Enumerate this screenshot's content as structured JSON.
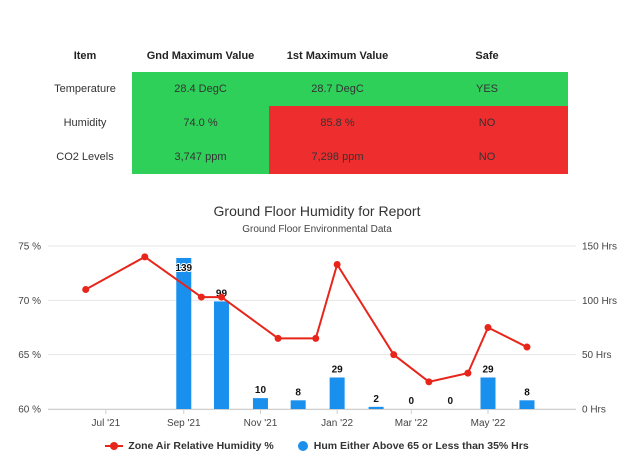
{
  "table": {
    "headers": [
      "Item",
      "Gnd Maximum Value",
      "1st Maximum Value",
      "Safe"
    ],
    "rows": [
      {
        "item": "Temperature",
        "gnd": "28.4 DegC",
        "first": "28.7 DegC",
        "safe": "YES",
        "gnd_color": "#2fd05a",
        "first_color": "#2fd05a",
        "safe_color": "#2fd05a"
      },
      {
        "item": "Humidity",
        "gnd": "74.0 %",
        "first": "85.8 %",
        "safe": "NO",
        "gnd_color": "#2fd05a",
        "first_color": "#ee2e2e",
        "safe_color": "#ee2e2e"
      },
      {
        "item": "CO2 Levels",
        "gnd": "3,747 ppm",
        "first": "7,298 ppm",
        "safe": "NO",
        "gnd_color": "#2fd05a",
        "first_color": "#ee2e2e",
        "safe_color": "#ee2e2e"
      }
    ]
  },
  "chart_data": {
    "type": "bar",
    "title": "Ground Floor Humidity for Report",
    "subtitle": "Ground Floor Environmental Data",
    "x_tick_labels": [
      "Jul '21",
      "Sep '21",
      "Nov '21",
      "Jan '22",
      "Mar '22",
      "May '22"
    ],
    "x_tick_months": [
      1,
      3,
      5,
      7,
      9,
      11
    ],
    "left_axis": {
      "ylim": [
        60,
        75
      ],
      "ticks": [
        60,
        65,
        70,
        75
      ],
      "tick_labels": [
        "60 %",
        "65 %",
        "70 %",
        "75 %"
      ]
    },
    "right_axis": {
      "ylim": [
        0,
        150
      ],
      "ticks": [
        0,
        50,
        100,
        150
      ],
      "tick_labels": [
        "0 Hrs",
        "50 Hrs",
        "100 Hrs",
        "150 Hrs"
      ]
    },
    "grid": "horizontal",
    "legend_position": "bottom",
    "series": [
      {
        "name": "Zone Air Relative Humidity %",
        "type": "line",
        "axis": "left",
        "color": "#e8251b",
        "x": [
          "2021-06-15",
          "2021-08-01",
          "2021-09-15",
          "2021-10-01",
          "2021-11-15",
          "2021-12-15",
          "2022-01-01",
          "2022-02-15",
          "2022-03-15",
          "2022-04-15",
          "2022-05-01",
          "2022-06-01"
        ],
        "values": [
          71.0,
          74.0,
          70.3,
          70.3,
          66.5,
          66.5,
          73.3,
          65.0,
          62.5,
          63.3,
          67.5,
          65.7
        ]
      },
      {
        "name": "Hum Either Above 65 or Less than 35% Hrs",
        "type": "bar",
        "axis": "right",
        "color": "#1a90ee",
        "x": [
          "2021-09-01",
          "2021-10-01",
          "2021-11-01",
          "2021-12-01",
          "2022-01-01",
          "2022-02-01",
          "2022-03-01",
          "2022-04-01",
          "2022-05-01",
          "2022-06-01"
        ],
        "values": [
          139,
          99,
          10,
          8,
          29,
          2,
          0,
          0,
          29,
          8
        ],
        "data_labels": [
          "139",
          "99",
          "10",
          "8",
          "29",
          "2",
          "0",
          "0",
          "29",
          "8"
        ]
      }
    ]
  },
  "legend": {
    "line_label": "Zone Air Relative Humidity %",
    "bar_label": "Hum Either Above 65 or Less than 35% Hrs"
  }
}
